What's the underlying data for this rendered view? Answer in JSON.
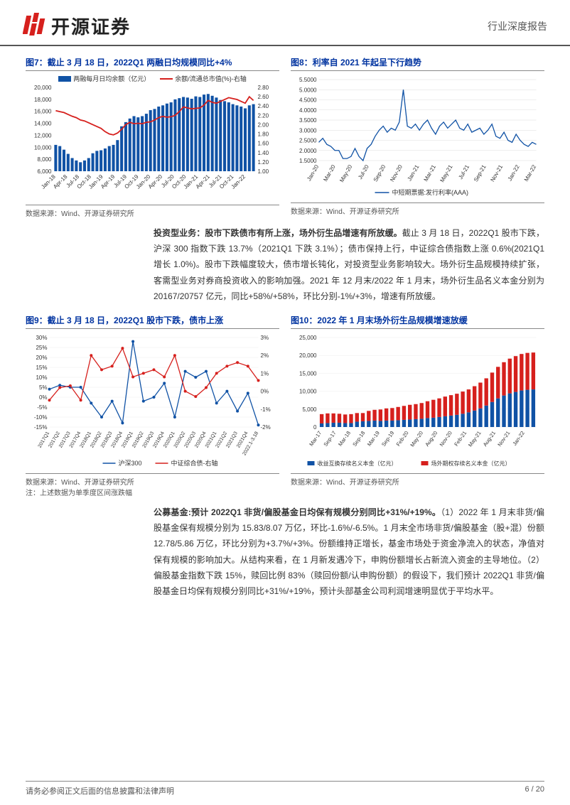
{
  "header": {
    "company": "开源证券",
    "doc_type": "行业深度报告"
  },
  "chart7": {
    "title": "图7：截止 3 月 18 日，2022Q1 两融日均规模同比+4%",
    "legend_bar": "两融每月日均余额（亿元）",
    "legend_line": "余额/流通总市值(%)-右轴",
    "source": "数据来源：Wind、开源证券研究所",
    "bar_color": "#1052a5",
    "line_color": "#d6201d",
    "x_labels": [
      "Jan-18",
      "Apr-18",
      "Jul-18",
      "Oct-18",
      "Jan-19",
      "Apr-19",
      "Jul-19",
      "Oct-19",
      "Jan-20",
      "Apr-20",
      "Jul-20",
      "Oct-20",
      "Jan-21",
      "Apr-21",
      "Jul-21",
      "Oct-21",
      "Jan-22"
    ],
    "y_left_ticks": [
      "20,000",
      "18,000",
      "16,000",
      "14,000",
      "12,000",
      "10,000",
      "8,000",
      "6,000"
    ],
    "y_right_ticks": [
      "2.80",
      "2.60",
      "2.40",
      "2.20",
      "2.00",
      "1.80",
      "1.60",
      "1.40",
      "1.20",
      "1.00"
    ],
    "bars": [
      10400,
      10200,
      9600,
      8900,
      8200,
      7800,
      7500,
      7800,
      8200,
      9000,
      9400,
      9500,
      9800,
      10200,
      10400,
      11200,
      13500,
      14200,
      14800,
      15200,
      15000,
      15200,
      15600,
      16200,
      16400,
      16800,
      17000,
      17300,
      17500,
      18000,
      18200,
      18400,
      18300,
      18100,
      18500,
      18400,
      18800,
      18900,
      18600,
      18300,
      17900,
      17700,
      17500,
      17200,
      17000,
      16800,
      16500,
      17000,
      17200
    ],
    "line": [
      2.3,
      2.28,
      2.26,
      2.22,
      2.18,
      2.15,
      2.1,
      2.08,
      2.04,
      2.0,
      1.96,
      1.92,
      1.85,
      1.8,
      1.78,
      1.82,
      1.9,
      2.0,
      2.05,
      2.02,
      2.03,
      2.02,
      2.05,
      2.06,
      2.1,
      2.15,
      2.18,
      2.16,
      2.17,
      2.2,
      2.28,
      2.38,
      2.36,
      2.34,
      2.35,
      2.36,
      2.42,
      2.52,
      2.48,
      2.46,
      2.5,
      2.54,
      2.58,
      2.56,
      2.54,
      2.5,
      2.46,
      2.6,
      2.52
    ]
  },
  "chart8": {
    "title": "图8：利率自 2021 年起呈下行趋势",
    "legend": "中短期票据:发行利率(AAA)",
    "source": "数据来源：Wind、开源证券研究所",
    "line_color": "#1052a5",
    "x_labels": [
      "Jan-20",
      "Mar-20",
      "May-20",
      "Jul-20",
      "Sep-20",
      "Nov-20",
      "Jan-21",
      "Mar-21",
      "May-21",
      "Jul-21",
      "Sep-21",
      "Nov-21",
      "Jan-22",
      "Mar-22"
    ],
    "y_ticks": [
      "5.5000",
      "5.0000",
      "4.5000",
      "4.0000",
      "3.5000",
      "3.0000",
      "2.5000",
      "2.0000",
      "1.5000"
    ],
    "line": [
      2.4,
      2.6,
      2.3,
      2.2,
      2.0,
      2.0,
      1.6,
      1.6,
      1.7,
      2.1,
      1.7,
      1.5,
      2.1,
      2.3,
      2.7,
      3.0,
      3.2,
      2.9,
      3.1,
      3.0,
      3.4,
      5.0,
      3.2,
      3.1,
      3.3,
      3.0,
      3.3,
      3.5,
      3.1,
      2.8,
      3.2,
      3.4,
      3.1,
      3.3,
      3.5,
      3.1,
      3.0,
      3.3,
      2.9,
      3.0,
      3.1,
      2.8,
      3.0,
      3.3,
      2.7,
      2.6,
      2.9,
      2.5,
      2.4,
      2.8,
      2.5,
      2.3,
      2.2,
      2.4,
      2.3
    ]
  },
  "text1": {
    "body": "<span class='bold'>投资型业务：股市下跌债市有所上涨，场外衍生品增速有所放缓。</span>截止 3 月 18 日，2022Q1 股市下跌，沪深 300 指数下跌 13.7%（2021Q1 下跌 3.1%）；债市保持上行，中证综合债指数上涨 0.6%(2021Q1 增长 1.0%)。股市下跌幅度较大，债市增长钝化，对投资型业务影响较大。场外衍生品规模持续扩张，客需型业务对券商投资收入的影响加强。2021 年 12 月末/2022 年 1 月末，场外衍生品名义本金分别为 20167/20757 亿元，同比+58%/+58%，环比分别-1%/+3%，增速有所放缓。"
  },
  "chart9": {
    "title": "图9：截止 3 月 18 日，2022Q1 股市下跌，债市上涨",
    "legend_a": "沪深300",
    "legend_b": "中证综合债-右轴",
    "source": "数据来源：Wind、开源证券研究所",
    "note": "注：上述数据为单季度区间涨跌幅",
    "color_a": "#1052a5",
    "color_b": "#d6201d",
    "x_labels": [
      "2017Q1",
      "2017Q2",
      "2017Q3",
      "2017Q4",
      "2018Q1",
      "2018Q2",
      "2018Q3",
      "2018Q4",
      "2019Q1",
      "2019Q2",
      "2019Q3",
      "2019Q4",
      "2020Q1",
      "2020Q2",
      "2020Q3",
      "2020Q4",
      "2021Q1",
      "2021Q2",
      "2021Q3",
      "2021Q4",
      "2022.1-3.18"
    ],
    "y_left_ticks": [
      "30%",
      "25%",
      "20%",
      "15%",
      "10%",
      "5%",
      "0%",
      "-5%",
      "-10%",
      "-15%"
    ],
    "y_right_ticks": [
      "3%",
      "2%",
      "1%",
      "0%",
      "-1%",
      "-2%"
    ],
    "line_a": [
      4,
      6,
      5,
      5,
      -3,
      -10,
      -2,
      -13,
      28,
      -2,
      0,
      7,
      -10,
      13,
      10,
      13,
      -3,
      3,
      -7,
      2,
      -14
    ],
    "line_b": [
      -0.5,
      0.2,
      0.3,
      -0.5,
      2.0,
      1.2,
      1.4,
      2.4,
      0.8,
      1.0,
      1.2,
      0.8,
      2.0,
      0.0,
      -0.3,
      0.2,
      1.0,
      1.4,
      1.6,
      1.4,
      0.6
    ]
  },
  "chart10": {
    "title": "图10：2022 年 1 月末场外衍生品规模增速放缓",
    "legend_a": "收益互换存续名义本金（亿元）",
    "legend_b": "场外期权存续名义本金（亿元）",
    "source": "数据来源：Wind、开源证券研究所",
    "color_a": "#1052a5",
    "color_b": "#d6201d",
    "x_labels": [
      "Mar-17",
      "Sep-17",
      "Mar-18",
      "Sep-18",
      "Mar-19",
      "Sep-19",
      "Feb-20",
      "May-20",
      "Aug-20",
      "Nov-20",
      "Feb-21",
      "May-21",
      "Aug-21",
      "Nov-21",
      "Jan-22"
    ],
    "y_ticks": [
      "25,000",
      "20,000",
      "15,000",
      "10,000",
      "5,000",
      "0"
    ],
    "bars_a": [
      1000,
      1100,
      1200,
      1200,
      1100,
      1100,
      1500,
      1600,
      1700,
      1800,
      1700,
      1800,
      1800,
      1900,
      2000,
      2100,
      2200,
      2300,
      2500,
      2600,
      2800,
      3000,
      3200,
      3400,
      3700,
      4100,
      4600,
      5200,
      6000,
      7000,
      8000,
      8800,
      9400,
      9800,
      10200,
      10400,
      10500
    ],
    "bars_b": [
      2600,
      2700,
      2600,
      2500,
      2400,
      2500,
      2400,
      2300,
      2800,
      3000,
      3200,
      3400,
      3500,
      3700,
      3900,
      4100,
      4200,
      4400,
      4700,
      5000,
      5200,
      5500,
      5700,
      5900,
      6200,
      6400,
      6800,
      7200,
      7600,
      8200,
      8800,
      9300,
      9700,
      10000,
      10200,
      10300,
      10300
    ]
  },
  "text2": {
    "body": "<span class='bold'>公募基金:预计 2022Q1 非货/偏股基金日均保有规模分别同比+31%/+19%。</span>（1）2022 年 1 月末非货/偏股基金保有规模分别为 15.83/8.07 万亿，环比-1.6%/-6.5%。1 月末全市场非货/偏股基金（股+混）份额 12.78/5.86 万亿，环比分别为+3.7%/+3%。份额维持正增长，基金市场处于资金净流入的状态，净值对保有规模的影响加大。从结构来看，在 1 月新发遇冷下，申购份额增长占新流入资金的主导地位。（2）偏股基金指数下跌 15%，赎回比例 83%（赎回份额/认申购份额）的假设下，我们预计 2022Q1 非货/偏股基金日均保有规模分别同比+31%/+19%，预计头部基金公司利润增速明显优于平均水平。"
  },
  "footer": {
    "left": "请务必参阅正文后面的信息披露和法律声明",
    "right": "6 / 20"
  }
}
